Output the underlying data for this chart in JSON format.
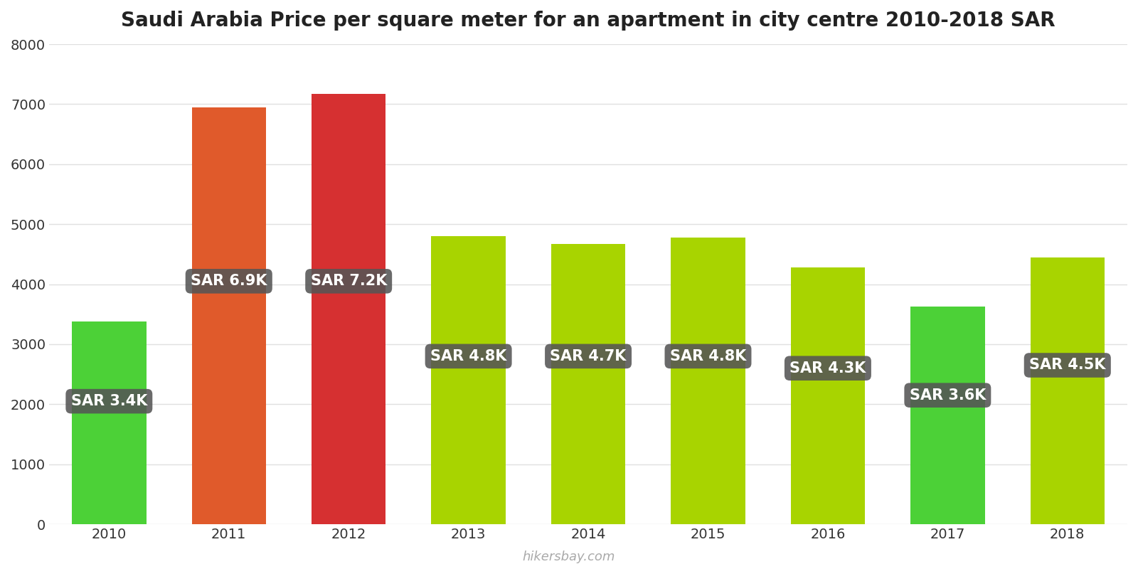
{
  "title": "Saudi Arabia Price per square meter for an apartment in city centre 2010-2018 SAR",
  "years": [
    2010,
    2011,
    2012,
    2013,
    2014,
    2015,
    2016,
    2017,
    2018
  ],
  "values": [
    3375,
    6950,
    7175,
    4800,
    4675,
    4775,
    4275,
    3625,
    4450
  ],
  "labels": [
    "SAR 3.4K",
    "SAR 6.9K",
    "SAR 7.2K",
    "SAR 4.8K",
    "SAR 4.7K",
    "SAR 4.8K",
    "SAR 4.3K",
    "SAR 3.6K",
    "SAR 4.5K"
  ],
  "bar_colors": [
    "#4cd137",
    "#e05a2b",
    "#d63031",
    "#a8d400",
    "#a8d400",
    "#a8d400",
    "#a8d400",
    "#4cd137",
    "#a8d400"
  ],
  "label_bg_color": "#555555",
  "label_text_color": "#ffffff",
  "label_y_positions": [
    2050,
    4050,
    4050,
    2800,
    2800,
    2800,
    2600,
    2150,
    2650
  ],
  "ylim": [
    0,
    8000
  ],
  "yticks": [
    0,
    1000,
    2000,
    3000,
    4000,
    5000,
    6000,
    7000,
    8000
  ],
  "background_color": "#ffffff",
  "grid_color": "#e0e0e0",
  "watermark": "hikersbay.com",
  "title_fontsize": 20,
  "label_fontsize": 15,
  "tick_fontsize": 14,
  "bar_width": 0.62
}
